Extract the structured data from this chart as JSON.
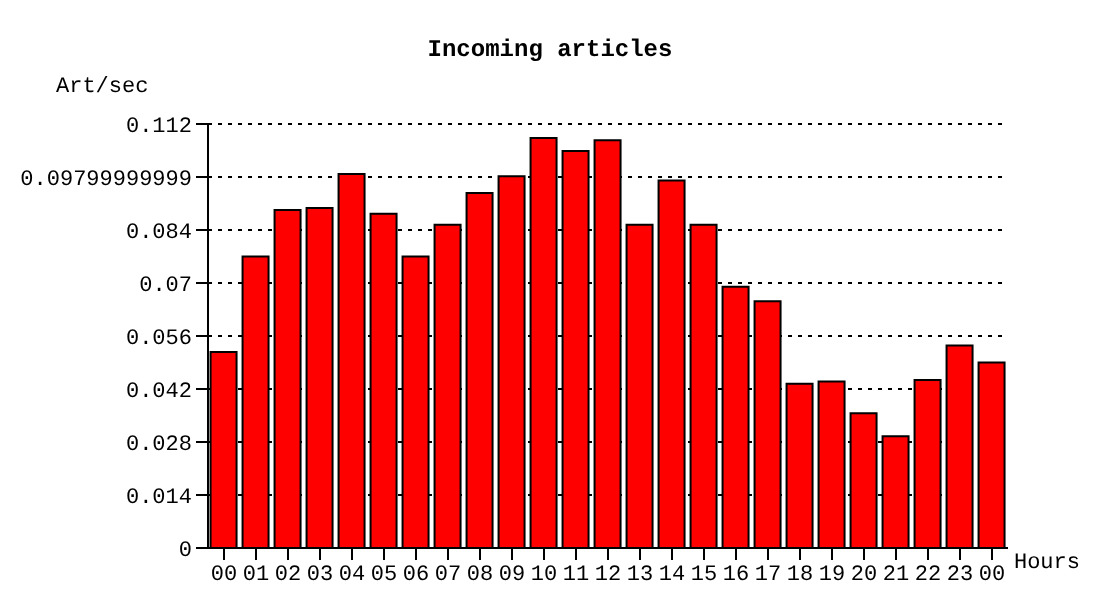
{
  "chart_data": {
    "type": "bar",
    "title": "Incoming articles",
    "ylabel": "Art/sec",
    "xlabel": "Hours",
    "categories": [
      "00",
      "01",
      "02",
      "03",
      "04",
      "05",
      "06",
      "07",
      "08",
      "09",
      "10",
      "11",
      "12",
      "13",
      "14",
      "15",
      "16",
      "17",
      "18",
      "19",
      "20",
      "21",
      "22",
      "23",
      "00"
    ],
    "values": [
      0.0518,
      0.077,
      0.0893,
      0.0898,
      0.0988,
      0.0883,
      0.077,
      0.0854,
      0.0938,
      0.0982,
      0.1083,
      0.1049,
      0.1077,
      0.0854,
      0.0971,
      0.0854,
      0.069,
      0.0652,
      0.0434,
      0.044,
      0.0356,
      0.0295,
      0.0444,
      0.0535,
      0.049
    ],
    "color": "#ff0000",
    "ylim": [
      0,
      0.112
    ],
    "yticks": [
      0,
      0.014,
      0.028,
      0.042,
      0.056,
      0.07,
      0.084,
      0.09799999999,
      0.112
    ],
    "grid": "y"
  }
}
